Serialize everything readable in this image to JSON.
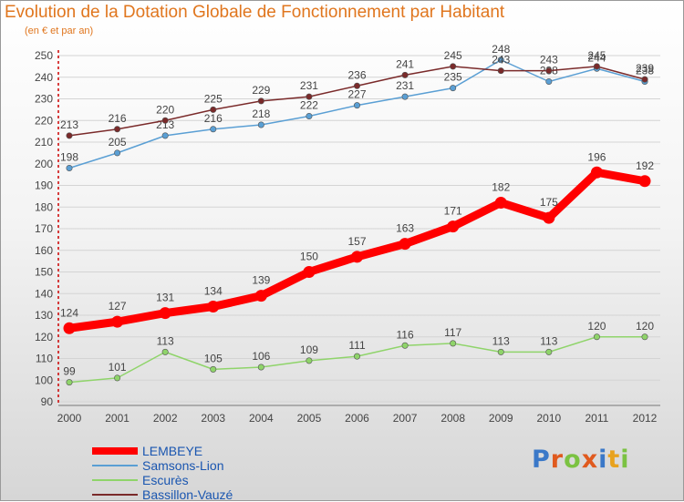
{
  "title": "Evolution de la Dotation Globale de Fonctionnement par Habitant",
  "subtitle": "(en € et par an)",
  "logo": {
    "text": "Proxiti",
    "colors": [
      "#3a78c8",
      "#e05a1e",
      "#7bc242",
      "#e05a1e",
      "#3a78c8",
      "#e8a21e",
      "#7bc242"
    ]
  },
  "chart_data": {
    "type": "line",
    "title": "Evolution de la Dotation Globale de Fonctionnement par Habitant",
    "subtitle": "(en € et par an)",
    "x": [
      "2000",
      "2001",
      "2002",
      "2003",
      "2004",
      "2005",
      "2006",
      "2007",
      "2008",
      "2009",
      "2010",
      "2011",
      "2012"
    ],
    "ylim": [
      90,
      250
    ],
    "yticks": [
      90,
      100,
      110,
      120,
      130,
      140,
      150,
      160,
      170,
      180,
      190,
      200,
      210,
      220,
      230,
      240,
      250
    ],
    "grid": "horizontal",
    "legend_position": "bottom-left",
    "series": [
      {
        "name": "LEMBEYE",
        "color": "#ff0000",
        "values": [
          124,
          127,
          131,
          134,
          139,
          150,
          157,
          163,
          171,
          182,
          175,
          196,
          192
        ]
      },
      {
        "name": "Samsons-Lion",
        "color": "#5a9fd4",
        "values": [
          198,
          205,
          213,
          216,
          218,
          222,
          227,
          231,
          235,
          248,
          238,
          244,
          238
        ]
      },
      {
        "name": "Escurès",
        "color": "#8fd46a",
        "values": [
          99,
          101,
          113,
          105,
          106,
          109,
          111,
          116,
          117,
          113,
          113,
          120,
          120
        ]
      },
      {
        "name": "Bassillon-Vauzé",
        "color": "#7a2a2a",
        "values": [
          213,
          216,
          220,
          225,
          229,
          231,
          236,
          241,
          245,
          243,
          243,
          245,
          239
        ]
      }
    ]
  }
}
